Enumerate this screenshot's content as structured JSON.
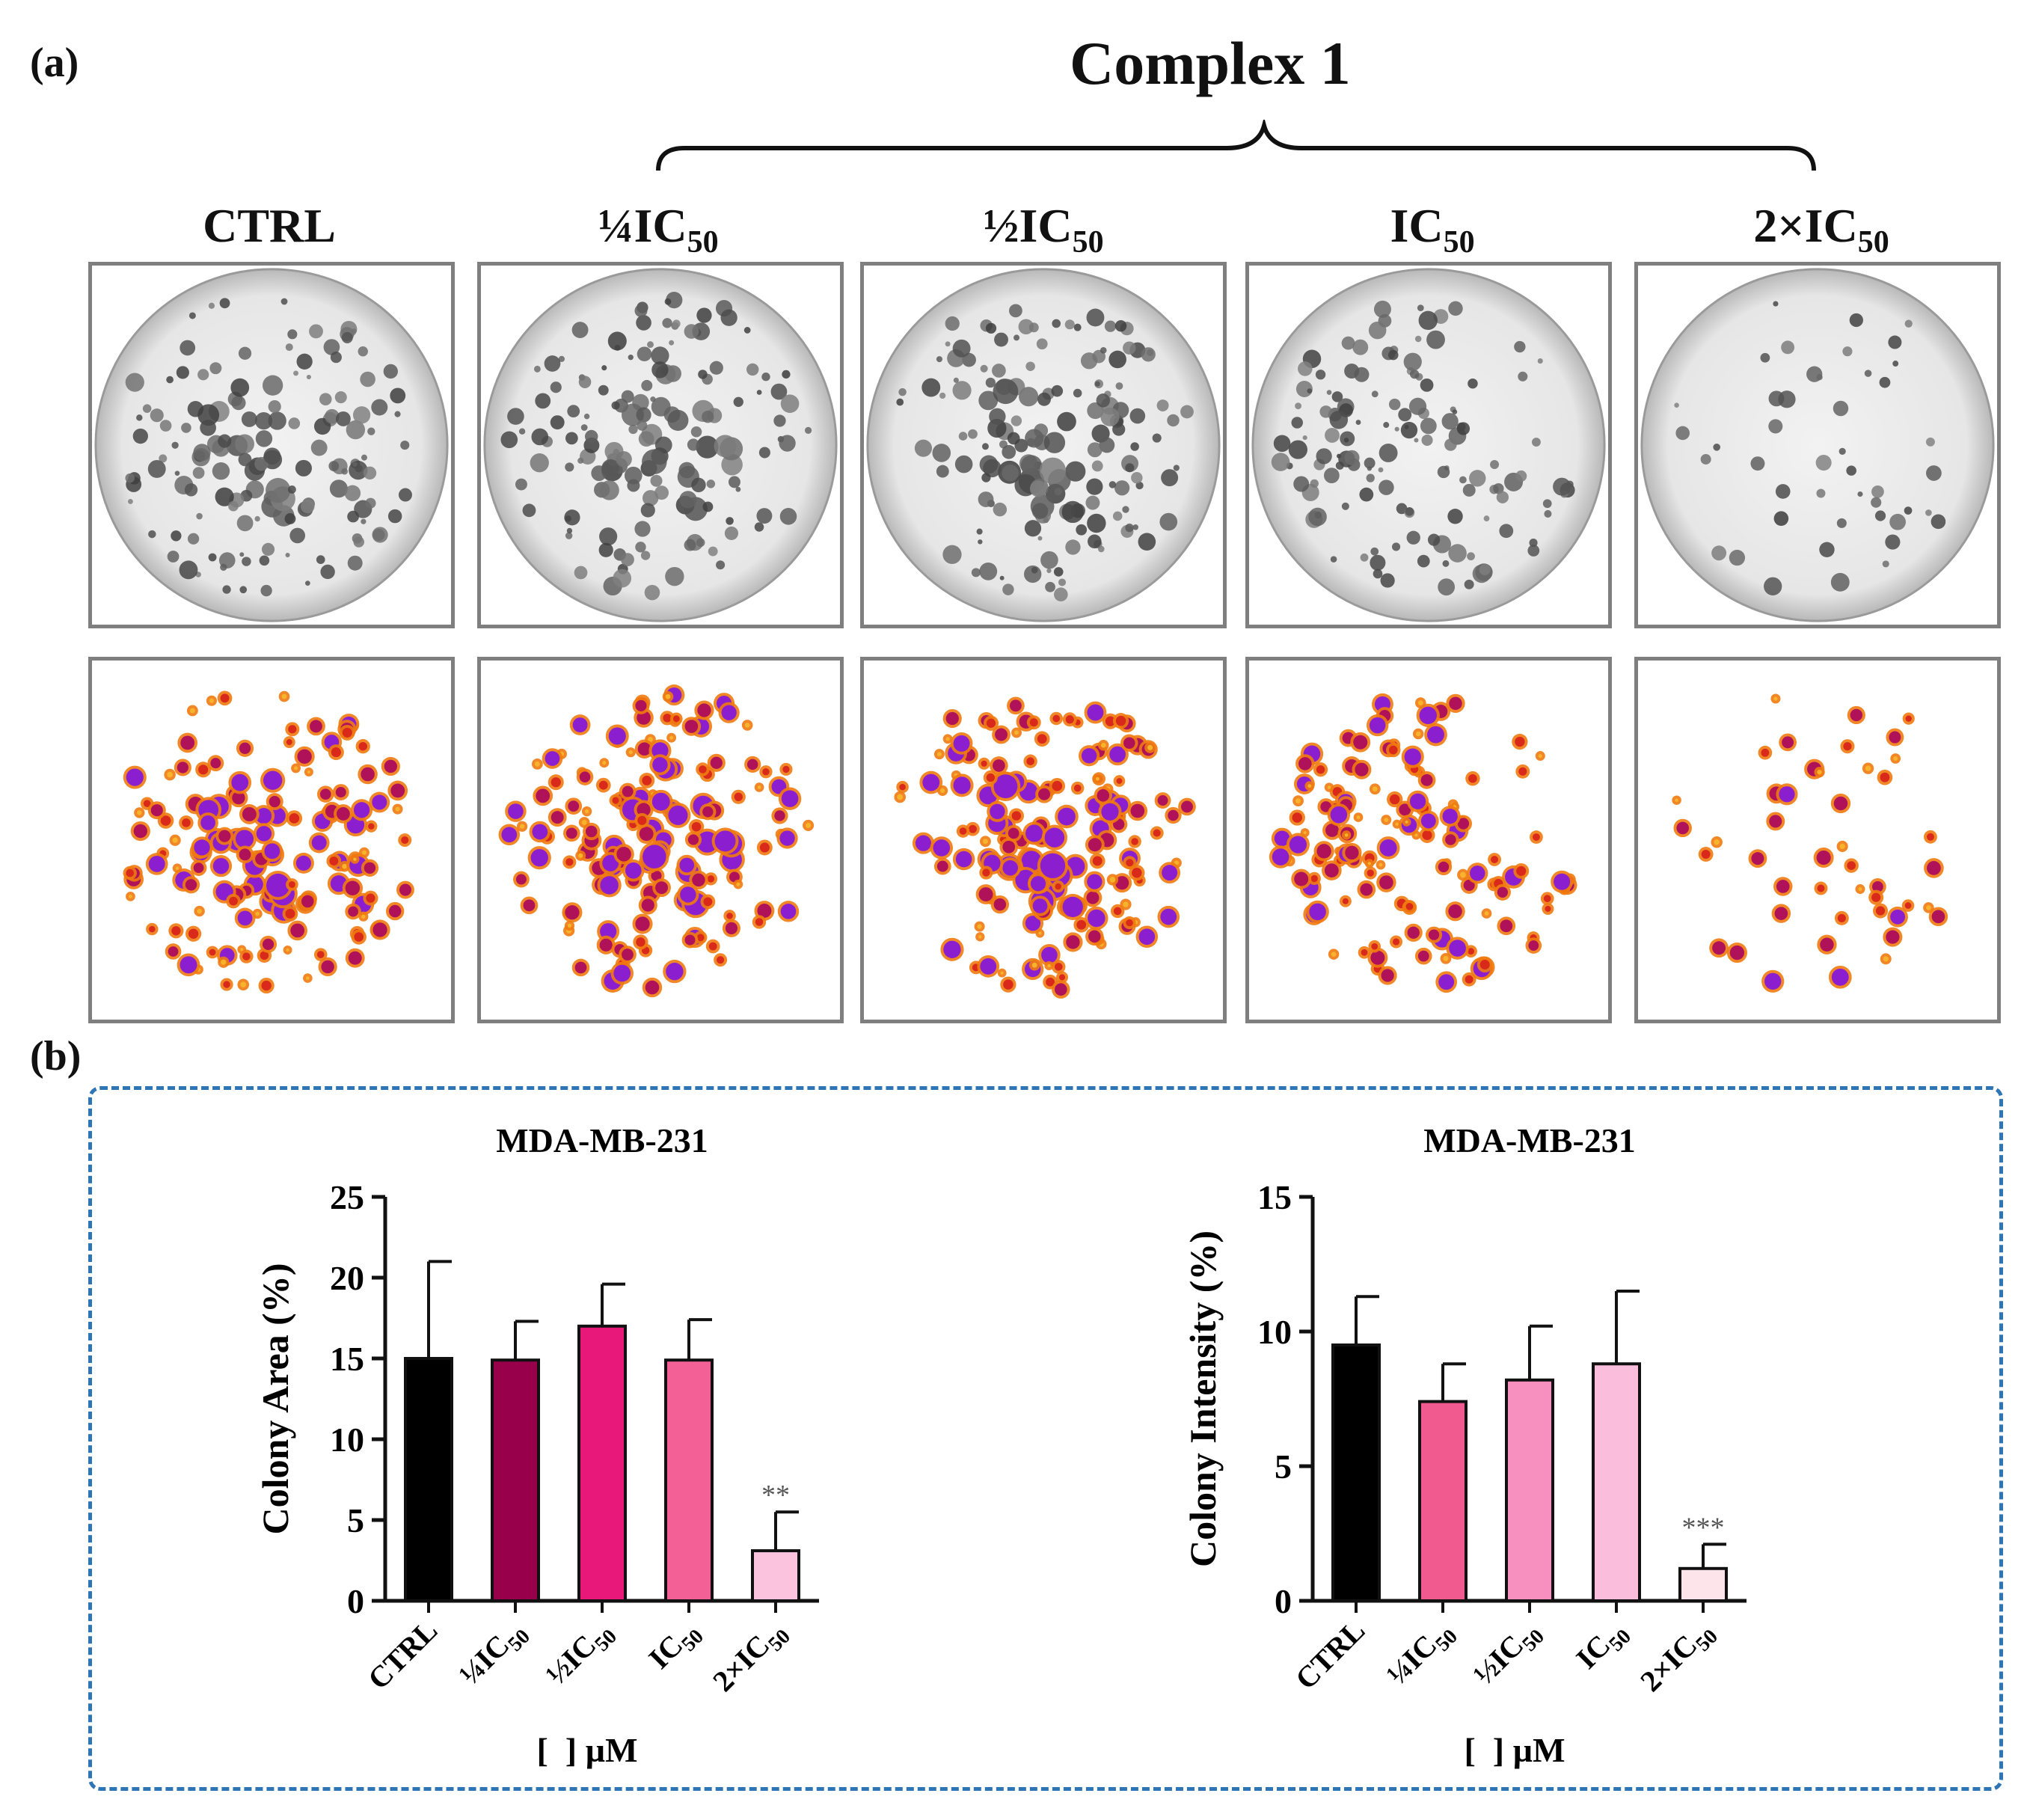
{
  "panel_a": {
    "label": "(a)",
    "group_title": "Complex 1",
    "columns": [
      {
        "id": "ctrl",
        "label": "CTRL",
        "sub": "",
        "density": 1.0,
        "bias": "center"
      },
      {
        "id": "quarter",
        "label": "¼IC",
        "sub": "50",
        "density": 1.0,
        "bias": "center"
      },
      {
        "id": "half",
        "label": "½IC",
        "sub": "50",
        "density": 1.05,
        "bias": "center"
      },
      {
        "id": "ic50",
        "label": "IC",
        "sub": "50",
        "density": 0.9,
        "bias": "left"
      },
      {
        "id": "double",
        "label": "2×IC",
        "sub": "50",
        "density": 0.3,
        "bias": "none"
      }
    ],
    "colors": {
      "gray_colony": "#5a5a5a",
      "heat_purple": "#8b1fd0",
      "heat_magenta": "#b0125a",
      "heat_red": "#d9291a",
      "heat_orange": "#f07a10",
      "heat_yellow": "#f7b32b"
    }
  },
  "panel_b": {
    "label": "(b)",
    "frame_color": "#2e75b6",
    "chart_data": [
      {
        "type": "bar",
        "title": "MDA-MB-231",
        "ylabel": "Colony Area (%)",
        "xlabel": "[  ] µM",
        "ylim": [
          0,
          25
        ],
        "yticks": [
          0,
          5,
          10,
          15,
          20,
          25
        ],
        "categories": [
          {
            "main": "CTRL",
            "sub": ""
          },
          {
            "main": "¼IC",
            "sub": "50"
          },
          {
            "main": "½IC",
            "sub": "50"
          },
          {
            "main": "IC",
            "sub": "50"
          },
          {
            "main": "2×IC",
            "sub": "50"
          }
        ],
        "values": [
          15.0,
          14.9,
          17.0,
          14.9,
          3.1
        ],
        "errors": [
          6.0,
          2.4,
          2.6,
          2.5,
          2.4
        ],
        "colors": [
          "#000000",
          "#99004c",
          "#e8187a",
          "#f26095",
          "#fbc3de"
        ],
        "annotations": [
          "",
          "",
          "",
          "",
          "**"
        ]
      },
      {
        "type": "bar",
        "title": "MDA-MB-231",
        "ylabel": "Colony Intensity (%)",
        "xlabel": "[  ] µM",
        "ylim": [
          0,
          15
        ],
        "yticks": [
          0,
          5,
          10,
          15
        ],
        "categories": [
          {
            "main": "CTRL",
            "sub": ""
          },
          {
            "main": "¼IC",
            "sub": "50"
          },
          {
            "main": "½IC",
            "sub": "50"
          },
          {
            "main": "IC",
            "sub": "50"
          },
          {
            "main": "2×IC",
            "sub": "50"
          }
        ],
        "values": [
          9.5,
          7.4,
          8.2,
          8.8,
          1.2
        ],
        "errors": [
          1.8,
          1.4,
          2.0,
          2.7,
          0.9
        ],
        "colors": [
          "#000000",
          "#f05a8e",
          "#f78fbf",
          "#fbbddc",
          "#fde3ea"
        ],
        "annotations": [
          "",
          "",
          "",
          "",
          "***"
        ]
      }
    ]
  }
}
